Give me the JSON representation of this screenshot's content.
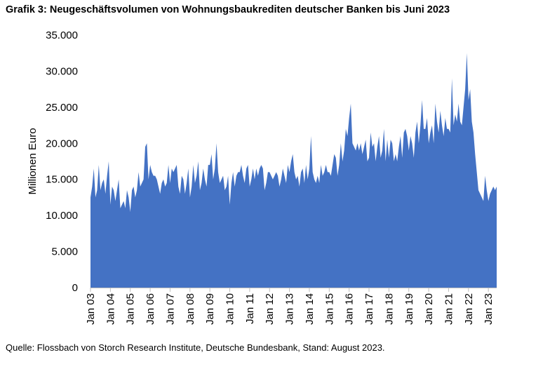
{
  "title": "Grafik 3: Neugeschäftsvolumen von Wohnungsbaukrediten deutscher Banken bis Juni 2023",
  "source": "Quelle: Flossbach von Storch Research Institute, Deutsche Bundesbank, Stand: August 2023.",
  "colors": {
    "area": "#4472C4",
    "axis": "#bfbfbf"
  },
  "chart_data": {
    "type": "area",
    "title": "Grafik 3: Neugeschäftsvolumen von Wohnungsbaukrediten deutscher Banken bis Juni 2023",
    "xlabel": "",
    "ylabel": "Millionen Euro",
    "ylim": [
      0,
      35000
    ],
    "yticks": [
      0,
      5000,
      10000,
      15000,
      20000,
      25000,
      30000,
      35000
    ],
    "ytick_labels": [
      "0",
      "5.000",
      "10.000",
      "15.000",
      "20.000",
      "25.000",
      "30.000",
      "35.000"
    ],
    "xtick_labels": [
      "Jan 03",
      "Jan 04",
      "Jan 05",
      "Jan 06",
      "Jan 07",
      "Jan 08",
      "Jan 09",
      "Jan 10",
      "Jan 11",
      "Jan 12",
      "Jan 13",
      "Jan 14",
      "Jan 15",
      "Jan 16",
      "Jan 17",
      "Jan 18",
      "Jan 19",
      "Jan 20",
      "Jan 21",
      "Jan 22",
      "Jan 23"
    ],
    "grid": false,
    "x_start": "Jan 03",
    "x_end": "Jun 23",
    "series": [
      {
        "values": [
          12500,
          14000,
          16500,
          12500,
          13500,
          17000,
          13500,
          14500,
          15000,
          13000,
          15500,
          17500,
          11500,
          14000,
          13500,
          12000,
          13500,
          15000,
          11000,
          11500,
          12000,
          11000,
          13500,
          12500,
          10500,
          13500,
          14000,
          12500,
          13500,
          16000,
          14000,
          14500,
          15000,
          19500,
          20000,
          15000,
          17000,
          16000,
          15500,
          15500,
          15000,
          14000,
          13000,
          14500,
          15000,
          14000,
          14500,
          17000,
          14500,
          16500,
          16000,
          16500,
          17000,
          14000,
          13000,
          15500,
          15000,
          13000,
          14500,
          16500,
          12500,
          14000,
          17000,
          14500,
          15500,
          17500,
          13500,
          14500,
          16500,
          15000,
          14000,
          17000,
          17000,
          18500,
          15000,
          16500,
          20000,
          16000,
          14500,
          15000,
          15500,
          13500,
          14000,
          15500,
          11500,
          14500,
          16000,
          14000,
          15500,
          16000,
          16000,
          17000,
          15500,
          14500,
          16500,
          17000,
          14000,
          15000,
          16500,
          15000,
          16500,
          15500,
          16500,
          17000,
          16500,
          13500,
          14500,
          16000,
          16000,
          15500,
          15000,
          15500,
          16000,
          15500,
          14000,
          15000,
          16500,
          15500,
          14500,
          17000,
          16000,
          17500,
          18500,
          16000,
          15000,
          15500,
          14000,
          16000,
          16500,
          14500,
          17000,
          15000,
          16500,
          21000,
          16000,
          15000,
          14500,
          15500,
          14500,
          17000,
          15500,
          16000,
          17000,
          16000,
          16000,
          15500,
          17000,
          18500,
          18000,
          15500,
          17000,
          20000,
          17500,
          19000,
          22000,
          21000,
          23500,
          25500,
          20000,
          19500,
          19000,
          20000,
          19000,
          20000,
          18500,
          19500,
          20500,
          17500,
          18000,
          21500,
          19500,
          20000,
          17500,
          19500,
          21000,
          18000,
          19000,
          22000,
          17500,
          20500,
          18000,
          20500,
          20000,
          17500,
          18500,
          17500,
          19500,
          21000,
          18000,
          21500,
          22000,
          21000,
          19000,
          21000,
          20000,
          18000,
          21500,
          23000,
          20000,
          22500,
          26000,
          22000,
          22000,
          23500,
          20000,
          21500,
          22500,
          20000,
          25500,
          23000,
          21500,
          24500,
          22500,
          21000,
          23500,
          22000,
          22000,
          21500,
          29000,
          22500,
          24000,
          23000,
          25500,
          23000,
          22500,
          25000,
          27500,
          32500,
          26000,
          27500,
          23000,
          21500,
          18500,
          16000,
          13500,
          13000,
          12500,
          12000,
          15500,
          13500,
          12000,
          13000,
          13500,
          14000,
          13500,
          14000
        ]
      }
    ]
  }
}
